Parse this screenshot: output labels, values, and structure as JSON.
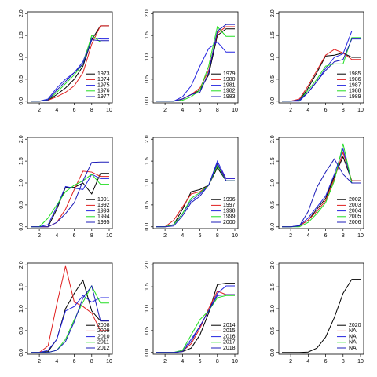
{
  "chart_data": [
    {
      "type": "line",
      "x": [
        1,
        2,
        3,
        4,
        5,
        6,
        7,
        8,
        9,
        10
      ],
      "xlim": [
        0.64,
        10.36
      ],
      "xticks": [
        2,
        4,
        6,
        8,
        10
      ],
      "ylim": [
        -0.04,
        2.04
      ],
      "yticks": [
        {
          "value": 0,
          "label": "0.0"
        },
        {
          "value": 0.5,
          "label": "0.5"
        },
        {
          "value": 1,
          "label": "1.0"
        },
        {
          "value": 1.5,
          "label": "1.5"
        },
        {
          "value": 2,
          "label": "2.0"
        }
      ],
      "legend": "bottom-right",
      "series": [
        {
          "name": "1973",
          "color": "#000000",
          "values": [
            0,
            0,
            0.02,
            0.15,
            0.3,
            0.5,
            0.8,
            1.4,
            1.72,
            1.72
          ]
        },
        {
          "name": "1974",
          "color": "#e02020",
          "values": [
            0,
            0,
            0.02,
            0.1,
            0.2,
            0.35,
            0.65,
            1.3,
            1.72,
            1.72
          ]
        },
        {
          "name": "1975",
          "color": "#2424e0",
          "values": [
            0,
            0,
            0.05,
            0.3,
            0.5,
            0.65,
            0.9,
            1.45,
            1.42,
            1.42
          ]
        },
        {
          "name": "1976",
          "color": "#22dd22",
          "values": [
            0,
            0,
            0.03,
            0.2,
            0.4,
            0.6,
            0.85,
            1.5,
            1.35,
            1.35
          ]
        },
        {
          "name": "1977",
          "color": "#1c1cb8",
          "values": [
            0,
            0,
            0.03,
            0.25,
            0.45,
            0.65,
            0.85,
            1.4,
            1.38,
            1.38
          ]
        }
      ]
    },
    {
      "type": "line",
      "x": [
        1,
        2,
        3,
        4,
        5,
        6,
        7,
        8,
        9,
        10
      ],
      "xlim": [
        0.64,
        10.36
      ],
      "xticks": [
        2,
        4,
        6,
        8,
        10
      ],
      "ylim": [
        -0.04,
        2.04
      ],
      "yticks": [
        {
          "value": 0,
          "label": "0.0"
        },
        {
          "value": 0.5,
          "label": "0.5"
        },
        {
          "value": 1,
          "label": "1.0"
        },
        {
          "value": 1.5,
          "label": "1.5"
        },
        {
          "value": 2,
          "label": "2.0"
        }
      ],
      "legend": "bottom-right",
      "series": [
        {
          "name": "1979",
          "color": "#000000",
          "values": [
            0,
            0,
            0,
            0.05,
            0.15,
            0.25,
            0.6,
            1.5,
            1.65,
            1.65
          ]
        },
        {
          "name": "1980",
          "color": "#e02020",
          "values": [
            0,
            0,
            0,
            0.05,
            0.15,
            0.3,
            0.7,
            1.55,
            1.7,
            1.7
          ]
        },
        {
          "name": "1981",
          "color": "#2424e0",
          "values": [
            0,
            0,
            0,
            0.1,
            0.35,
            0.8,
            1.2,
            1.35,
            1.12,
            1.12
          ]
        },
        {
          "name": "1982",
          "color": "#22dd22",
          "values": [
            0,
            0,
            0,
            0.02,
            0.1,
            0.25,
            0.8,
            1.7,
            1.48,
            1.48
          ]
        },
        {
          "name": "1983",
          "color": "#1c1cb8",
          "values": [
            0,
            0,
            0,
            0.05,
            0.15,
            0.2,
            0.65,
            1.6,
            1.75,
            1.75
          ]
        }
      ]
    },
    {
      "type": "line",
      "x": [
        1,
        2,
        3,
        4,
        5,
        6,
        7,
        8,
        9,
        10
      ],
      "xlim": [
        0.64,
        10.36
      ],
      "xticks": [
        2,
        4,
        6,
        8,
        10
      ],
      "ylim": [
        -0.04,
        2.04
      ],
      "yticks": [
        {
          "value": 0,
          "label": "0.0"
        },
        {
          "value": 0.5,
          "label": "0.5"
        },
        {
          "value": 1,
          "label": "1.0"
        },
        {
          "value": 1.5,
          "label": "1.5"
        },
        {
          "value": 2,
          "label": "2.0"
        }
      ],
      "legend": "bottom-right",
      "series": [
        {
          "name": "1985",
          "color": "#000000",
          "values": [
            0,
            0,
            0.02,
            0.3,
            0.65,
            1.03,
            1.05,
            1.1,
            1.0,
            1.0
          ]
        },
        {
          "name": "1986",
          "color": "#e02020",
          "values": [
            0,
            0,
            0.05,
            0.35,
            0.7,
            1.05,
            1.18,
            1.1,
            0.95,
            0.95
          ]
        },
        {
          "name": "1987",
          "color": "#2424e0",
          "values": [
            0,
            0,
            0,
            0.2,
            0.45,
            0.75,
            1.0,
            1.08,
            1.6,
            1.6
          ]
        },
        {
          "name": "1988",
          "color": "#22dd22",
          "values": [
            0,
            0,
            0.02,
            0.25,
            0.5,
            0.8,
            0.85,
            0.85,
            1.45,
            1.45
          ]
        },
        {
          "name": "1989",
          "color": "#1c1cb8",
          "values": [
            0,
            0,
            0.03,
            0.2,
            0.45,
            0.7,
            0.9,
            0.95,
            1.42,
            1.42
          ]
        }
      ]
    },
    {
      "type": "line",
      "x": [
        1,
        2,
        3,
        4,
        5,
        6,
        7,
        8,
        9,
        10
      ],
      "xlim": [
        0.64,
        10.36
      ],
      "xticks": [
        2,
        4,
        6,
        8,
        10
      ],
      "ylim": [
        -0.04,
        2.04
      ],
      "yticks": [
        {
          "value": 0,
          "label": "0.0"
        },
        {
          "value": 0.5,
          "label": "0.5"
        },
        {
          "value": 1,
          "label": "1.0"
        },
        {
          "value": 1.5,
          "label": "1.5"
        },
        {
          "value": 2,
          "label": "2.0"
        }
      ],
      "legend": "bottom-right",
      "series": [
        {
          "name": "1991",
          "color": "#000000",
          "values": [
            0,
            0,
            0,
            0.4,
            0.9,
            0.9,
            1.0,
            0.75,
            1.22,
            1.22
          ]
        },
        {
          "name": "1992",
          "color": "#e02020",
          "values": [
            0,
            0,
            0,
            0.1,
            0.4,
            0.85,
            1.27,
            1.25,
            1.15,
            1.15
          ]
        },
        {
          "name": "1993",
          "color": "#2424e0",
          "values": [
            0,
            0,
            0.05,
            0.45,
            0.92,
            0.88,
            0.85,
            1.2,
            1.1,
            1.1
          ]
        },
        {
          "name": "1994",
          "color": "#22dd22",
          "values": [
            0,
            0,
            0.2,
            0.5,
            0.8,
            0.95,
            1.05,
            1.2,
            0.97,
            0.97
          ]
        },
        {
          "name": "1995",
          "color": "#1c1cb8",
          "values": [
            0,
            0,
            0,
            0.1,
            0.3,
            0.55,
            1.05,
            1.47,
            1.48,
            1.48
          ]
        }
      ]
    },
    {
      "type": "line",
      "x": [
        1,
        2,
        3,
        4,
        5,
        6,
        7,
        8,
        9,
        10
      ],
      "xlim": [
        0.64,
        10.36
      ],
      "xticks": [
        2,
        4,
        6,
        8,
        10
      ],
      "ylim": [
        -0.04,
        2.04
      ],
      "yticks": [
        {
          "value": 0,
          "label": "0.0"
        },
        {
          "value": 0.5,
          "label": "0.5"
        },
        {
          "value": 1,
          "label": "1.0"
        },
        {
          "value": 1.5,
          "label": "1.5"
        },
        {
          "value": 2,
          "label": "2.0"
        }
      ],
      "legend": "bottom-right",
      "series": [
        {
          "name": "1996",
          "color": "#000000",
          "values": [
            0,
            0,
            0.05,
            0.4,
            0.8,
            0.85,
            0.95,
            1.35,
            1.05,
            1.05
          ]
        },
        {
          "name": "1997",
          "color": "#e02020",
          "values": [
            0,
            0,
            0.15,
            0.45,
            0.75,
            0.8,
            0.95,
            1.42,
            1.1,
            1.1
          ]
        },
        {
          "name": "1998",
          "color": "#2424e0",
          "values": [
            0,
            0,
            0.05,
            0.3,
            0.6,
            0.75,
            0.95,
            1.5,
            1.1,
            1.1
          ]
        },
        {
          "name": "1999",
          "color": "#22dd22",
          "values": [
            0,
            0,
            0.05,
            0.3,
            0.65,
            0.78,
            0.95,
            1.4,
            1.05,
            1.05
          ]
        },
        {
          "name": "2000",
          "color": "#1c1cb8",
          "values": [
            0,
            0,
            0.02,
            0.25,
            0.55,
            0.7,
            0.95,
            1.45,
            1.05,
            1.05
          ]
        }
      ]
    },
    {
      "type": "line",
      "x": [
        1,
        2,
        3,
        4,
        5,
        6,
        7,
        8,
        9,
        10
      ],
      "xlim": [
        0.64,
        10.36
      ],
      "xticks": [
        2,
        4,
        6,
        8,
        10
      ],
      "ylim": [
        -0.04,
        2.04
      ],
      "yticks": [
        {
          "value": 0,
          "label": "0.0"
        },
        {
          "value": 0.5,
          "label": "0.5"
        },
        {
          "value": 1,
          "label": "1.0"
        },
        {
          "value": 1.5,
          "label": "1.5"
        },
        {
          "value": 2,
          "label": "2.0"
        }
      ],
      "legend": "bottom-right",
      "series": [
        {
          "name": "2002",
          "color": "#000000",
          "values": [
            0,
            0,
            0.02,
            0.15,
            0.4,
            0.65,
            1.15,
            1.6,
            1.05,
            1.05
          ]
        },
        {
          "name": "2003",
          "color": "#e02020",
          "values": [
            0,
            0,
            0.02,
            0.15,
            0.35,
            0.6,
            1.1,
            1.7,
            1.05,
            1.05
          ]
        },
        {
          "name": "2004",
          "color": "#2424e0",
          "values": [
            0,
            0,
            0.03,
            0.2,
            0.45,
            0.7,
            1.2,
            1.78,
            1.0,
            1.0
          ]
        },
        {
          "name": "2005",
          "color": "#22dd22",
          "values": [
            0,
            0,
            0,
            0.1,
            0.3,
            0.55,
            1.05,
            1.9,
            1.0,
            1.0
          ]
        },
        {
          "name": "2006",
          "color": "#1c1cb8",
          "values": [
            0,
            0,
            0.02,
            0.35,
            0.9,
            1.25,
            1.55,
            1.2,
            1.0,
            1.0
          ]
        }
      ]
    },
    {
      "type": "line",
      "x": [
        1,
        2,
        3,
        4,
        5,
        6,
        7,
        8,
        9,
        10
      ],
      "xlim": [
        0.64,
        10.36
      ],
      "xticks": [
        2,
        4,
        6,
        8,
        10
      ],
      "ylim": [
        -0.04,
        2.04
      ],
      "yticks": [
        {
          "value": 0,
          "label": "0.0"
        },
        {
          "value": 0.5,
          "label": "0.5"
        },
        {
          "value": 1,
          "label": "1.0"
        },
        {
          "value": 1.5,
          "label": "1.5"
        },
        {
          "value": 2,
          "label": "2.0"
        }
      ],
      "legend": "bottom-right",
      "series": [
        {
          "name": "2008",
          "color": "#000000",
          "values": [
            0,
            0,
            0.02,
            0.3,
            1.0,
            1.35,
            1.65,
            0.95,
            0.72,
            0.72
          ]
        },
        {
          "name": "2009",
          "color": "#e02020",
          "values": [
            0,
            0,
            0.15,
            1.1,
            1.97,
            1.15,
            1.05,
            0.9,
            0.5,
            0.5
          ]
        },
        {
          "name": "2010",
          "color": "#2424e0",
          "values": [
            0,
            0,
            0.05,
            0.3,
            0.95,
            1.05,
            1.3,
            1.15,
            1.25,
            1.25
          ]
        },
        {
          "name": "2011",
          "color": "#22dd22",
          "values": [
            0,
            0,
            0,
            0.05,
            0.3,
            0.75,
            1.15,
            1.52,
            1.13,
            1.13
          ]
        },
        {
          "name": "2012",
          "color": "#1c1cb8",
          "values": [
            0,
            0,
            0,
            0.05,
            0.25,
            0.7,
            1.25,
            1.52,
            0.72,
            0.72
          ]
        }
      ]
    },
    {
      "type": "line",
      "x": [
        1,
        2,
        3,
        4,
        5,
        6,
        7,
        8,
        9,
        10
      ],
      "xlim": [
        0.64,
        10.36
      ],
      "xticks": [
        2,
        4,
        6,
        8,
        10
      ],
      "ylim": [
        -0.04,
        2.04
      ],
      "yticks": [
        {
          "value": 0,
          "label": "0.0"
        },
        {
          "value": 0.5,
          "label": "0.5"
        },
        {
          "value": 1,
          "label": "1.0"
        },
        {
          "value": 1.5,
          "label": "1.5"
        },
        {
          "value": 2,
          "label": "2.0"
        }
      ],
      "legend": "bottom-right",
      "series": [
        {
          "name": "2014",
          "color": "#000000",
          "values": [
            0,
            0,
            0,
            0.02,
            0.1,
            0.4,
            0.9,
            1.55,
            1.58,
            1.58
          ]
        },
        {
          "name": "2015",
          "color": "#e02020",
          "values": [
            0,
            0,
            0,
            0.03,
            0.2,
            0.55,
            1.0,
            1.4,
            1.32,
            1.32
          ]
        },
        {
          "name": "2016",
          "color": "#2424e0",
          "values": [
            0,
            0,
            0,
            0.05,
            0.3,
            0.6,
            0.95,
            1.35,
            1.52,
            1.52
          ]
        },
        {
          "name": "2017",
          "color": "#22dd22",
          "values": [
            0,
            0,
            0,
            0.05,
            0.4,
            0.75,
            0.95,
            1.25,
            1.3,
            1.3
          ]
        },
        {
          "name": "2018",
          "color": "#1c1cb8",
          "values": [
            0,
            0,
            0,
            0.02,
            0.25,
            0.6,
            0.95,
            1.3,
            1.32,
            1.32
          ]
        }
      ]
    },
    {
      "type": "line",
      "x": [
        1,
        2,
        3,
        4,
        5,
        6,
        7,
        8,
        9,
        10
      ],
      "xlim": [
        0.64,
        10.36
      ],
      "xticks": [
        2,
        4,
        6,
        8,
        10
      ],
      "ylim": [
        -0.04,
        2.04
      ],
      "yticks": [
        {
          "value": 0,
          "label": "0.0"
        },
        {
          "value": 0.5,
          "label": "0.5"
        },
        {
          "value": 1,
          "label": "1.0"
        },
        {
          "value": 1.5,
          "label": "1.5"
        },
        {
          "value": 2,
          "label": "2.0"
        }
      ],
      "legend": "bottom-right",
      "series": [
        {
          "name": "2020",
          "color": "#000000",
          "values": [
            0,
            0,
            0,
            0.01,
            0.1,
            0.35,
            0.8,
            1.35,
            1.67,
            1.67
          ]
        },
        {
          "name": "NA",
          "color": "#e02020",
          "values": [
            null,
            null,
            null,
            null,
            null,
            null,
            null,
            null,
            null,
            null
          ]
        },
        {
          "name": "NA",
          "color": "#2424e0",
          "values": [
            null,
            null,
            null,
            null,
            null,
            null,
            null,
            null,
            null,
            null
          ]
        },
        {
          "name": "NA",
          "color": "#22dd22",
          "values": [
            null,
            null,
            null,
            null,
            null,
            null,
            null,
            null,
            null,
            null
          ]
        },
        {
          "name": "NA",
          "color": "#1c1cb8",
          "values": [
            null,
            null,
            null,
            null,
            null,
            null,
            null,
            null,
            null,
            null
          ]
        }
      ]
    }
  ]
}
